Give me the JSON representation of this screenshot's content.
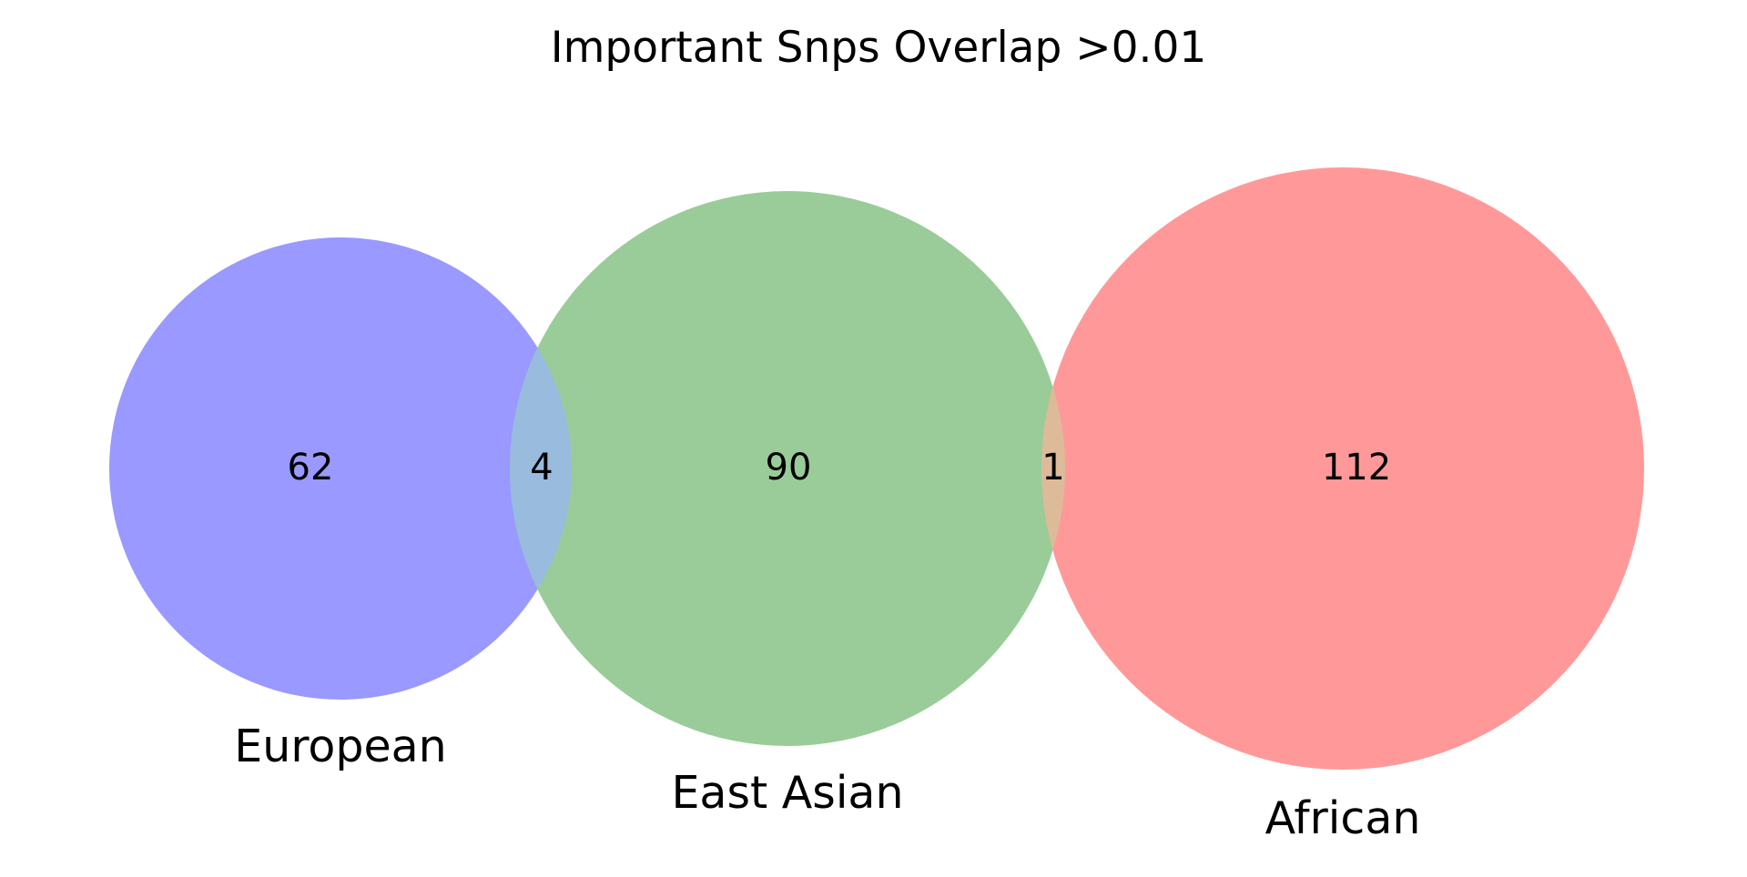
{
  "title": "Important Snps Overlap >0.01",
  "sets": {
    "european": {
      "label": "European",
      "color": "#9999ff"
    },
    "east_asian": {
      "label": "East Asian",
      "color": "#9acc99"
    },
    "african": {
      "label": "African",
      "color": "#ff9999"
    }
  },
  "overlap_colors": {
    "european_east_asian": "#99bbdd",
    "east_asian_african": "#ddbb99"
  },
  "regions": {
    "european_only": "62",
    "european_east_asian": "4",
    "east_asian_only": "90",
    "east_asian_african": "1",
    "african_only": "112"
  }
}
